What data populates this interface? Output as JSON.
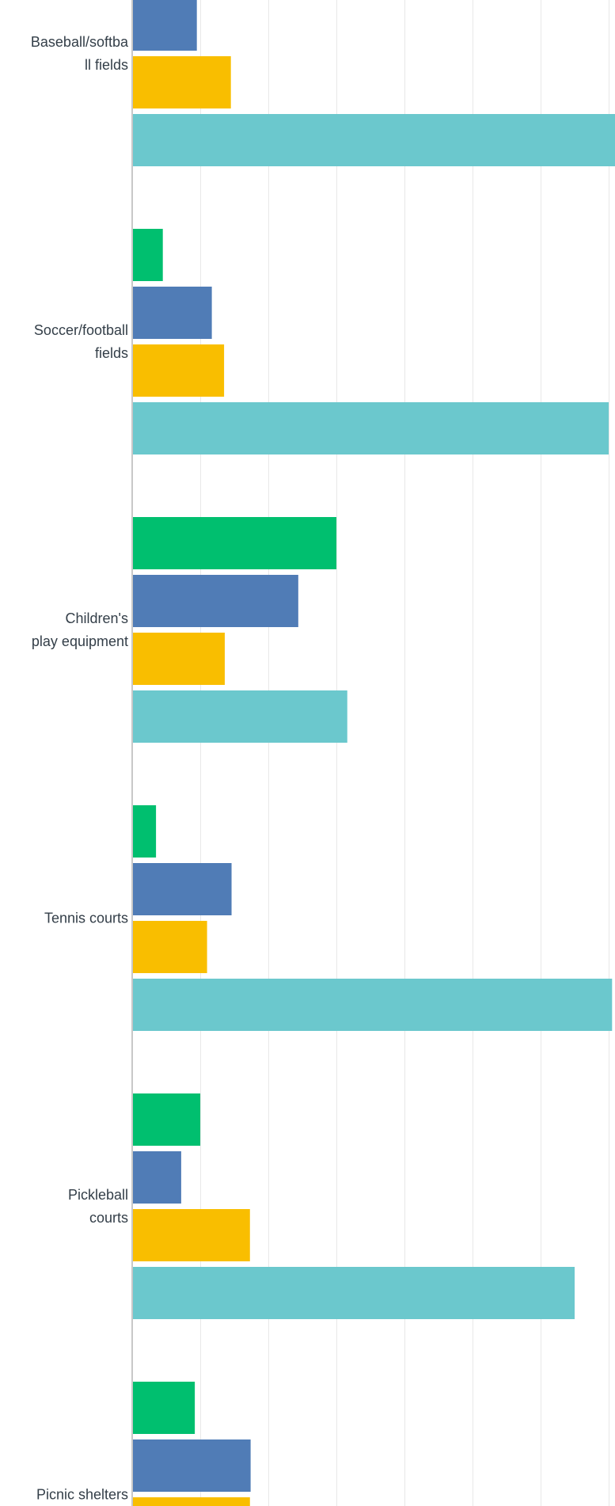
{
  "chart_data": {
    "type": "bar",
    "orientation": "horizontal",
    "categories": [
      "Baseball/softball fields",
      "Soccer/football fields",
      "Children's play equipment",
      "Tennis courts",
      "Pickleball courts",
      "Picnic shelters"
    ],
    "category_label_lines": [
      [
        "Baseball/softba",
        "ll fields"
      ],
      [
        "Soccer/football",
        "fields"
      ],
      [
        "Children's",
        "play equipment"
      ],
      [
        "Tennis courts"
      ],
      [
        "Pickleball",
        "courts"
      ],
      [
        "Picnic shelters"
      ]
    ],
    "series": [
      {
        "values": [
          0.0,
          4.5,
          30.0,
          3.5,
          10.0,
          9.2
        ],
        "color": "#00bf6f"
      },
      {
        "values": [
          9.5,
          11.7,
          24.4,
          14.6,
          7.2,
          17.4
        ],
        "color": "#507cb6"
      },
      {
        "values": [
          14.5,
          13.5,
          13.6,
          11.0,
          17.3,
          17.3
        ],
        "color": "#f9be00"
      },
      {
        "values": [
          71.0,
          70.0,
          31.6,
          70.5,
          65.0,
          null
        ],
        "color": "#6bc8cd"
      }
    ],
    "xlim": [
      0,
      70
    ],
    "grid_step": 10,
    "grid": true,
    "legend": "none"
  }
}
